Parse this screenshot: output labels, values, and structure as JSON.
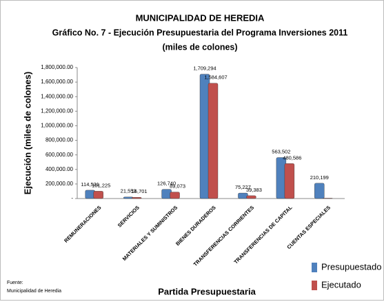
{
  "chart_data": {
    "type": "bar",
    "title": "MUNICIPALIDAD DE HEREDIA",
    "subtitle": "Gráfico No. 7 - Ejecución Presupuestaria del Programa Inversiones 2011",
    "subtitle2": "(miles de colones)",
    "y_label": "Ejecución (miles de colones)",
    "x_label": "Partida Presupuestaria",
    "source_title": "Fuente:",
    "source": "Municipalidad de Heredia",
    "categories": [
      "REMUNERACIONES",
      "SERVICIOS",
      "MATERIALES Y SUMINISTROS",
      "BIENES DURADEROS",
      "TRANSFERENCIAS CORRIENTES",
      "TRANSFERENCIAS DE CAPITAL",
      "CUENTAS ESPECIALES"
    ],
    "series": [
      {
        "name": "Presupuestado",
        "color": "#4f81bd",
        "values": [
          114531,
          21553,
          126740,
          1709294,
          75227,
          563502,
          210199
        ],
        "value_labels": [
          "114,531",
          "21,553",
          "126,740",
          "1,709,294",
          "75,227",
          "563,502",
          "210,199"
        ]
      },
      {
        "name": "Ejecutado",
        "color": "#c0504d",
        "values": [
          101225,
          16701,
          89073,
          1584607,
          39383,
          480586,
          5000
        ],
        "value_labels": [
          "101,225",
          "16,701",
          "89,073",
          "1,584,607",
          "39,383",
          "480,586",
          null
        ]
      }
    ],
    "ylim": [
      0,
      1800000
    ],
    "yticks": [
      {
        "value": 0,
        "label": "-"
      },
      {
        "value": 200000,
        "label": "200,000.00"
      },
      {
        "value": 400000,
        "label": "400,000.00"
      },
      {
        "value": 600000,
        "label": "600,000.00"
      },
      {
        "value": 800000,
        "label": "800,000.00"
      },
      {
        "value": 1000000,
        "label": "1,000,000.00"
      },
      {
        "value": 1200000,
        "label": "1,200,000.00"
      },
      {
        "value": 1400000,
        "label": "1,400,000.00"
      },
      {
        "value": 1600000,
        "label": "1,600,000.00"
      },
      {
        "value": 1800000,
        "label": "1,800,000.00"
      }
    ],
    "legend": "bottom-right"
  }
}
